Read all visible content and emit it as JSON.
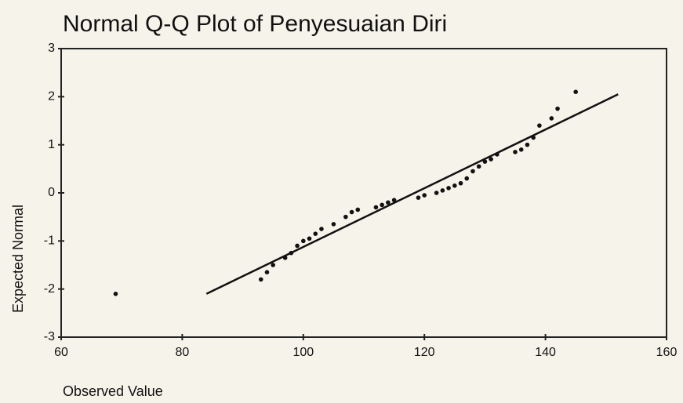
{
  "chart_data": {
    "type": "scatter",
    "title": "Normal Q-Q Plot of Penyesuaian Diri",
    "xlabel": "Observed Value",
    "ylabel": "Expected Normal",
    "x": [
      69,
      93,
      94,
      95,
      97,
      98,
      99,
      100,
      101,
      102,
      103,
      105,
      107,
      108,
      109,
      112,
      113,
      114,
      115,
      119,
      120,
      122,
      123,
      124,
      125,
      126,
      127,
      128,
      129,
      130,
      131,
      132,
      135,
      136,
      137,
      138,
      139,
      141,
      142,
      145
    ],
    "values": [
      -2.1,
      -1.8,
      -1.65,
      -1.5,
      -1.35,
      -1.25,
      -1.1,
      -1.0,
      -0.95,
      -0.85,
      -0.75,
      -0.65,
      -0.5,
      -0.4,
      -0.35,
      -0.3,
      -0.25,
      -0.2,
      -0.15,
      -0.1,
      -0.05,
      0.0,
      0.05,
      0.1,
      0.15,
      0.2,
      0.3,
      0.45,
      0.55,
      0.65,
      0.7,
      0.8,
      0.85,
      0.9,
      1.0,
      1.15,
      1.4,
      1.55,
      1.75,
      2.1
    ],
    "color": "#111111",
    "line": {
      "x": [
        84,
        152
      ],
      "y": [
        -2.1,
        2.05
      ],
      "color": "#111111"
    },
    "xlim": [
      60,
      160
    ],
    "xticks": [
      60,
      80,
      100,
      120,
      140,
      160
    ],
    "ylim": [
      -3,
      3
    ],
    "yticks": [
      -3,
      -2,
      -1,
      0,
      1,
      2,
      3
    ]
  }
}
